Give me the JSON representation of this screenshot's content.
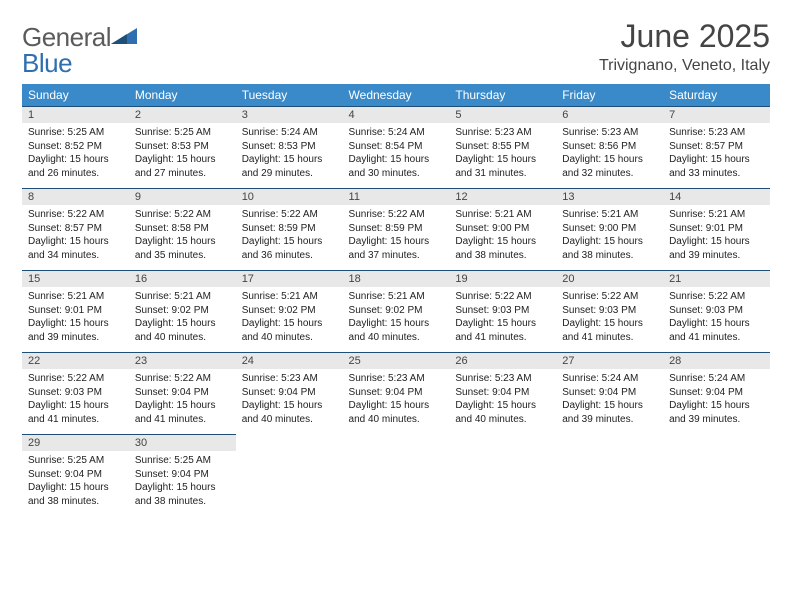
{
  "logo": {
    "text1": "General",
    "text2": "Blue"
  },
  "title": "June 2025",
  "subtitle": "Trivignano, Veneto, Italy",
  "colors": {
    "header_bg": "#3a8ac9",
    "header_text": "#ffffff",
    "daynum_bg": "#e8e8e8",
    "row_border": "#1f4e78",
    "title_color": "#444444",
    "logo_gray": "#5b5b5b",
    "logo_blue": "#2f6fb0"
  },
  "typography": {
    "title_fontsize": 32,
    "subtitle_fontsize": 16,
    "day_header_fontsize": 12,
    "daynum_fontsize": 11,
    "cell_fontsize": 10,
    "logo_fontsize": 26
  },
  "day_headers": [
    "Sunday",
    "Monday",
    "Tuesday",
    "Wednesday",
    "Thursday",
    "Friday",
    "Saturday"
  ],
  "weeks": [
    [
      {
        "num": "1",
        "sunrise": "Sunrise: 5:25 AM",
        "sunset": "Sunset: 8:52 PM",
        "daylight": "Daylight: 15 hours and 26 minutes."
      },
      {
        "num": "2",
        "sunrise": "Sunrise: 5:25 AM",
        "sunset": "Sunset: 8:53 PM",
        "daylight": "Daylight: 15 hours and 27 minutes."
      },
      {
        "num": "3",
        "sunrise": "Sunrise: 5:24 AM",
        "sunset": "Sunset: 8:53 PM",
        "daylight": "Daylight: 15 hours and 29 minutes."
      },
      {
        "num": "4",
        "sunrise": "Sunrise: 5:24 AM",
        "sunset": "Sunset: 8:54 PM",
        "daylight": "Daylight: 15 hours and 30 minutes."
      },
      {
        "num": "5",
        "sunrise": "Sunrise: 5:23 AM",
        "sunset": "Sunset: 8:55 PM",
        "daylight": "Daylight: 15 hours and 31 minutes."
      },
      {
        "num": "6",
        "sunrise": "Sunrise: 5:23 AM",
        "sunset": "Sunset: 8:56 PM",
        "daylight": "Daylight: 15 hours and 32 minutes."
      },
      {
        "num": "7",
        "sunrise": "Sunrise: 5:23 AM",
        "sunset": "Sunset: 8:57 PM",
        "daylight": "Daylight: 15 hours and 33 minutes."
      }
    ],
    [
      {
        "num": "8",
        "sunrise": "Sunrise: 5:22 AM",
        "sunset": "Sunset: 8:57 PM",
        "daylight": "Daylight: 15 hours and 34 minutes."
      },
      {
        "num": "9",
        "sunrise": "Sunrise: 5:22 AM",
        "sunset": "Sunset: 8:58 PM",
        "daylight": "Daylight: 15 hours and 35 minutes."
      },
      {
        "num": "10",
        "sunrise": "Sunrise: 5:22 AM",
        "sunset": "Sunset: 8:59 PM",
        "daylight": "Daylight: 15 hours and 36 minutes."
      },
      {
        "num": "11",
        "sunrise": "Sunrise: 5:22 AM",
        "sunset": "Sunset: 8:59 PM",
        "daylight": "Daylight: 15 hours and 37 minutes."
      },
      {
        "num": "12",
        "sunrise": "Sunrise: 5:21 AM",
        "sunset": "Sunset: 9:00 PM",
        "daylight": "Daylight: 15 hours and 38 minutes."
      },
      {
        "num": "13",
        "sunrise": "Sunrise: 5:21 AM",
        "sunset": "Sunset: 9:00 PM",
        "daylight": "Daylight: 15 hours and 38 minutes."
      },
      {
        "num": "14",
        "sunrise": "Sunrise: 5:21 AM",
        "sunset": "Sunset: 9:01 PM",
        "daylight": "Daylight: 15 hours and 39 minutes."
      }
    ],
    [
      {
        "num": "15",
        "sunrise": "Sunrise: 5:21 AM",
        "sunset": "Sunset: 9:01 PM",
        "daylight": "Daylight: 15 hours and 39 minutes."
      },
      {
        "num": "16",
        "sunrise": "Sunrise: 5:21 AM",
        "sunset": "Sunset: 9:02 PM",
        "daylight": "Daylight: 15 hours and 40 minutes."
      },
      {
        "num": "17",
        "sunrise": "Sunrise: 5:21 AM",
        "sunset": "Sunset: 9:02 PM",
        "daylight": "Daylight: 15 hours and 40 minutes."
      },
      {
        "num": "18",
        "sunrise": "Sunrise: 5:21 AM",
        "sunset": "Sunset: 9:02 PM",
        "daylight": "Daylight: 15 hours and 40 minutes."
      },
      {
        "num": "19",
        "sunrise": "Sunrise: 5:22 AM",
        "sunset": "Sunset: 9:03 PM",
        "daylight": "Daylight: 15 hours and 41 minutes."
      },
      {
        "num": "20",
        "sunrise": "Sunrise: 5:22 AM",
        "sunset": "Sunset: 9:03 PM",
        "daylight": "Daylight: 15 hours and 41 minutes."
      },
      {
        "num": "21",
        "sunrise": "Sunrise: 5:22 AM",
        "sunset": "Sunset: 9:03 PM",
        "daylight": "Daylight: 15 hours and 41 minutes."
      }
    ],
    [
      {
        "num": "22",
        "sunrise": "Sunrise: 5:22 AM",
        "sunset": "Sunset: 9:03 PM",
        "daylight": "Daylight: 15 hours and 41 minutes."
      },
      {
        "num": "23",
        "sunrise": "Sunrise: 5:22 AM",
        "sunset": "Sunset: 9:04 PM",
        "daylight": "Daylight: 15 hours and 41 minutes."
      },
      {
        "num": "24",
        "sunrise": "Sunrise: 5:23 AM",
        "sunset": "Sunset: 9:04 PM",
        "daylight": "Daylight: 15 hours and 40 minutes."
      },
      {
        "num": "25",
        "sunrise": "Sunrise: 5:23 AM",
        "sunset": "Sunset: 9:04 PM",
        "daylight": "Daylight: 15 hours and 40 minutes."
      },
      {
        "num": "26",
        "sunrise": "Sunrise: 5:23 AM",
        "sunset": "Sunset: 9:04 PM",
        "daylight": "Daylight: 15 hours and 40 minutes."
      },
      {
        "num": "27",
        "sunrise": "Sunrise: 5:24 AM",
        "sunset": "Sunset: 9:04 PM",
        "daylight": "Daylight: 15 hours and 39 minutes."
      },
      {
        "num": "28",
        "sunrise": "Sunrise: 5:24 AM",
        "sunset": "Sunset: 9:04 PM",
        "daylight": "Daylight: 15 hours and 39 minutes."
      }
    ],
    [
      {
        "num": "29",
        "sunrise": "Sunrise: 5:25 AM",
        "sunset": "Sunset: 9:04 PM",
        "daylight": "Daylight: 15 hours and 38 minutes."
      },
      {
        "num": "30",
        "sunrise": "Sunrise: 5:25 AM",
        "sunset": "Sunset: 9:04 PM",
        "daylight": "Daylight: 15 hours and 38 minutes."
      },
      null,
      null,
      null,
      null,
      null
    ]
  ]
}
